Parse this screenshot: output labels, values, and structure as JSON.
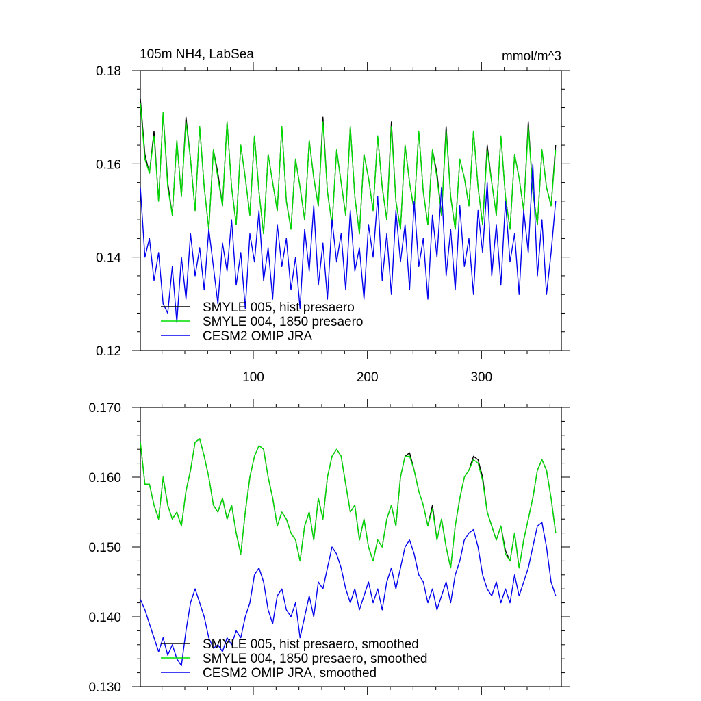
{
  "figure": {
    "title_left": "105m NH4, LabSea",
    "title_right": "mmol/m^3"
  },
  "colors": {
    "smyle005": "#000000",
    "smyle004": "#00dd00",
    "omip": "#0000ee"
  },
  "chart_data": [
    {
      "type": "line",
      "title": "105m NH4, LabSea",
      "units": "mmol/m^3",
      "xlabel": "",
      "ylabel": "",
      "xlim": [
        1,
        370
      ],
      "ylim": [
        0.12,
        0.18
      ],
      "xticks": [
        100,
        200,
        300
      ],
      "xtick_labels": [
        "100",
        "200",
        "300"
      ],
      "yticks": [
        0.12,
        0.14,
        0.16,
        0.18
      ],
      "ytick_labels": [
        "0.12",
        "0.14",
        "0.16",
        "0.18"
      ],
      "grid": false,
      "legend_position": "bottom-left",
      "x": [
        1,
        5,
        9,
        13,
        17,
        21,
        25,
        29,
        33,
        37,
        41,
        45,
        49,
        53,
        57,
        61,
        65,
        69,
        73,
        77,
        81,
        85,
        89,
        93,
        97,
        101,
        105,
        109,
        113,
        117,
        121,
        125,
        129,
        133,
        137,
        141,
        145,
        149,
        153,
        157,
        161,
        165,
        169,
        173,
        177,
        181,
        185,
        189,
        193,
        197,
        201,
        205,
        209,
        213,
        217,
        221,
        225,
        229,
        233,
        237,
        241,
        245,
        249,
        253,
        257,
        261,
        265,
        269,
        273,
        277,
        281,
        285,
        289,
        293,
        297,
        301,
        305,
        309,
        313,
        317,
        321,
        325,
        329,
        333,
        337,
        341,
        345,
        349,
        353,
        357,
        361,
        365
      ],
      "series": [
        {
          "name": "SMYLE 005, hist presaero",
          "color_key": "smyle005",
          "values": [
            0.174,
            0.162,
            0.158,
            0.167,
            0.152,
            0.171,
            0.156,
            0.149,
            0.165,
            0.153,
            0.17,
            0.161,
            0.15,
            0.168,
            0.155,
            0.146,
            0.163,
            0.158,
            0.151,
            0.169,
            0.155,
            0.147,
            0.164,
            0.157,
            0.149,
            0.166,
            0.154,
            0.145,
            0.162,
            0.156,
            0.15,
            0.168,
            0.152,
            0.146,
            0.161,
            0.155,
            0.148,
            0.165,
            0.157,
            0.151,
            0.17,
            0.154,
            0.147,
            0.163,
            0.156,
            0.149,
            0.168,
            0.153,
            0.145,
            0.162,
            0.157,
            0.15,
            0.166,
            0.155,
            0.148,
            0.169,
            0.152,
            0.146,
            0.164,
            0.156,
            0.15,
            0.167,
            0.154,
            0.147,
            0.163,
            0.158,
            0.149,
            0.168,
            0.153,
            0.146,
            0.161,
            0.157,
            0.151,
            0.167,
            0.155,
            0.147,
            0.164,
            0.156,
            0.149,
            0.166,
            0.153,
            0.146,
            0.162,
            0.157,
            0.15,
            0.169,
            0.154,
            0.147,
            0.163,
            0.155,
            0.151,
            0.164
          ]
        },
        {
          "name": "SMYLE 004, 1850 presaero",
          "color_key": "smyle004",
          "values": [
            0.173,
            0.161,
            0.158,
            0.166,
            0.152,
            0.171,
            0.155,
            0.149,
            0.165,
            0.153,
            0.169,
            0.161,
            0.15,
            0.168,
            0.155,
            0.146,
            0.163,
            0.157,
            0.151,
            0.169,
            0.155,
            0.147,
            0.164,
            0.157,
            0.149,
            0.166,
            0.154,
            0.145,
            0.162,
            0.156,
            0.15,
            0.168,
            0.152,
            0.146,
            0.161,
            0.155,
            0.148,
            0.165,
            0.157,
            0.151,
            0.169,
            0.154,
            0.147,
            0.163,
            0.156,
            0.149,
            0.168,
            0.153,
            0.145,
            0.162,
            0.157,
            0.15,
            0.166,
            0.155,
            0.148,
            0.168,
            0.152,
            0.146,
            0.164,
            0.156,
            0.15,
            0.167,
            0.154,
            0.147,
            0.163,
            0.157,
            0.149,
            0.167,
            0.153,
            0.146,
            0.161,
            0.157,
            0.151,
            0.167,
            0.155,
            0.147,
            0.163,
            0.156,
            0.149,
            0.166,
            0.153,
            0.146,
            0.162,
            0.157,
            0.15,
            0.168,
            0.154,
            0.147,
            0.163,
            0.155,
            0.151,
            0.163
          ]
        },
        {
          "name": "CESM2 OMIP JRA",
          "color_key": "omip",
          "values": [
            0.155,
            0.14,
            0.144,
            0.135,
            0.141,
            0.13,
            0.128,
            0.138,
            0.126,
            0.14,
            0.131,
            0.145,
            0.136,
            0.142,
            0.133,
            0.146,
            0.138,
            0.13,
            0.143,
            0.137,
            0.148,
            0.134,
            0.141,
            0.129,
            0.145,
            0.139,
            0.15,
            0.135,
            0.142,
            0.131,
            0.147,
            0.138,
            0.144,
            0.133,
            0.14,
            0.129,
            0.146,
            0.137,
            0.151,
            0.134,
            0.143,
            0.131,
            0.148,
            0.139,
            0.145,
            0.133,
            0.15,
            0.137,
            0.142,
            0.131,
            0.147,
            0.14,
            0.153,
            0.135,
            0.145,
            0.132,
            0.15,
            0.139,
            0.147,
            0.133,
            0.152,
            0.138,
            0.144,
            0.131,
            0.149,
            0.14,
            0.155,
            0.136,
            0.146,
            0.133,
            0.151,
            0.138,
            0.144,
            0.132,
            0.15,
            0.141,
            0.156,
            0.136,
            0.147,
            0.134,
            0.152,
            0.139,
            0.145,
            0.132,
            0.15,
            0.141,
            0.16,
            0.136,
            0.148,
            0.132,
            0.141,
            0.152
          ]
        }
      ]
    },
    {
      "type": "line",
      "title": "",
      "xlabel": "",
      "ylabel": "",
      "xlim": [
        1,
        370
      ],
      "ylim": [
        0.13,
        0.17
      ],
      "xticks": [
        100,
        200,
        300
      ],
      "yticks": [
        0.13,
        0.14,
        0.15,
        0.16,
        0.17
      ],
      "ytick_labels": [
        "0.130",
        "0.140",
        "0.150",
        "0.160",
        "0.170"
      ],
      "grid": false,
      "legend_position": "bottom-left",
      "x": [
        1,
        5,
        9,
        13,
        17,
        21,
        25,
        29,
        33,
        37,
        41,
        45,
        49,
        53,
        57,
        61,
        65,
        69,
        73,
        77,
        81,
        85,
        89,
        93,
        97,
        101,
        105,
        109,
        113,
        117,
        121,
        125,
        129,
        133,
        137,
        141,
        145,
        149,
        153,
        157,
        161,
        165,
        169,
        173,
        177,
        181,
        185,
        189,
        193,
        197,
        201,
        205,
        209,
        213,
        217,
        221,
        225,
        229,
        233,
        237,
        241,
        245,
        249,
        253,
        257,
        261,
        265,
        269,
        273,
        277,
        281,
        285,
        289,
        293,
        297,
        301,
        305,
        309,
        313,
        317,
        321,
        325,
        329,
        333,
        337,
        341,
        345,
        349,
        353,
        357,
        361,
        365
      ],
      "series": [
        {
          "name": "SMYLE 005, hist presaero, smoothed",
          "color_key": "smyle005",
          "values": [
            0.165,
            0.159,
            0.159,
            0.156,
            0.154,
            0.16,
            0.156,
            0.154,
            0.155,
            0.153,
            0.158,
            0.161,
            0.165,
            0.1655,
            0.163,
            0.16,
            0.156,
            0.155,
            0.157,
            0.154,
            0.156,
            0.152,
            0.149,
            0.155,
            0.16,
            0.163,
            0.1645,
            0.164,
            0.16,
            0.157,
            0.153,
            0.155,
            0.154,
            0.152,
            0.151,
            0.148,
            0.153,
            0.155,
            0.151,
            0.157,
            0.154,
            0.16,
            0.163,
            0.164,
            0.163,
            0.159,
            0.155,
            0.156,
            0.151,
            0.154,
            0.15,
            0.148,
            0.151,
            0.15,
            0.154,
            0.156,
            0.153,
            0.16,
            0.163,
            0.1635,
            0.161,
            0.158,
            0.156,
            0.153,
            0.156,
            0.151,
            0.154,
            0.15,
            0.147,
            0.153,
            0.157,
            0.16,
            0.161,
            0.163,
            0.1625,
            0.16,
            0.155,
            0.153,
            0.151,
            0.153,
            0.1495,
            0.148,
            0.152,
            0.147,
            0.151,
            0.154,
            0.157,
            0.161,
            0.1625,
            0.161,
            0.157,
            0.152
          ]
        },
        {
          "name": "SMYLE 004, 1850 presaero, smoothed",
          "color_key": "smyle004",
          "values": [
            0.165,
            0.159,
            0.159,
            0.156,
            0.154,
            0.16,
            0.156,
            0.154,
            0.155,
            0.153,
            0.158,
            0.161,
            0.165,
            0.1655,
            0.163,
            0.16,
            0.156,
            0.155,
            0.157,
            0.154,
            0.156,
            0.152,
            0.149,
            0.155,
            0.16,
            0.163,
            0.1645,
            0.164,
            0.16,
            0.157,
            0.153,
            0.155,
            0.154,
            0.152,
            0.151,
            0.148,
            0.153,
            0.155,
            0.151,
            0.157,
            0.154,
            0.16,
            0.163,
            0.164,
            0.163,
            0.159,
            0.155,
            0.156,
            0.151,
            0.154,
            0.15,
            0.148,
            0.151,
            0.15,
            0.154,
            0.156,
            0.153,
            0.16,
            0.163,
            0.163,
            0.161,
            0.158,
            0.156,
            0.153,
            0.1555,
            0.151,
            0.154,
            0.15,
            0.147,
            0.153,
            0.157,
            0.16,
            0.161,
            0.1625,
            0.162,
            0.1595,
            0.155,
            0.153,
            0.151,
            0.153,
            0.149,
            0.148,
            0.152,
            0.147,
            0.151,
            0.154,
            0.157,
            0.161,
            0.1625,
            0.161,
            0.157,
            0.152
          ]
        },
        {
          "name": "CESM2 OMIP JRA, smoothed",
          "color_key": "omip",
          "values": [
            0.1425,
            0.141,
            0.139,
            0.137,
            0.135,
            0.137,
            0.1345,
            0.136,
            0.134,
            0.133,
            0.138,
            0.142,
            0.144,
            0.142,
            0.14,
            0.137,
            0.1355,
            0.136,
            0.135,
            0.137,
            0.136,
            0.138,
            0.137,
            0.14,
            0.142,
            0.146,
            0.147,
            0.145,
            0.141,
            0.139,
            0.143,
            0.144,
            0.141,
            0.14,
            0.142,
            0.137,
            0.14,
            0.143,
            0.14,
            0.145,
            0.144,
            0.147,
            0.15,
            0.149,
            0.147,
            0.144,
            0.142,
            0.144,
            0.141,
            0.143,
            0.145,
            0.142,
            0.144,
            0.141,
            0.145,
            0.147,
            0.144,
            0.147,
            0.15,
            0.151,
            0.149,
            0.146,
            0.145,
            0.142,
            0.144,
            0.141,
            0.143,
            0.145,
            0.142,
            0.146,
            0.148,
            0.151,
            0.152,
            0.1525,
            0.15,
            0.146,
            0.144,
            0.143,
            0.145,
            0.142,
            0.144,
            0.142,
            0.146,
            0.143,
            0.145,
            0.147,
            0.15,
            0.153,
            0.1535,
            0.15,
            0.145,
            0.143
          ]
        }
      ]
    }
  ]
}
